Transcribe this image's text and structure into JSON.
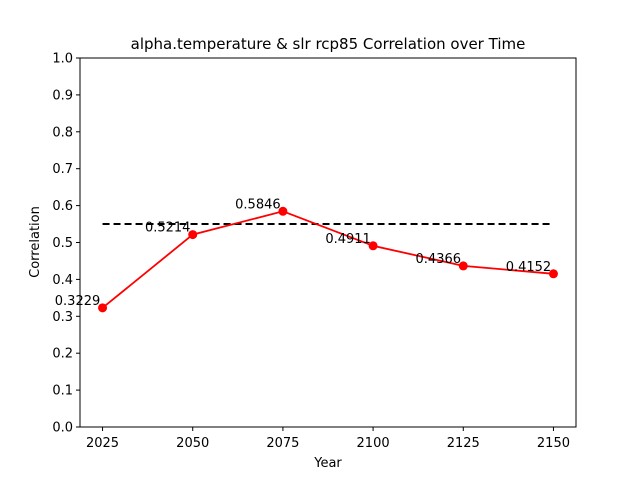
{
  "chart_data": {
    "type": "line",
    "title": "alpha.temperature & slr rcp85 Correlation over Time",
    "xlabel": "Year",
    "ylabel": "Correlation",
    "x": [
      2025,
      2050,
      2075,
      2100,
      2125,
      2150
    ],
    "series": [
      {
        "values": [
          0.3229,
          0.5214,
          0.5846,
          0.4911,
          0.4366,
          0.4152
        ],
        "data_labels": [
          "0.3229",
          "0.5214",
          "0.5846",
          "0.4911",
          "0.4366",
          "0.4152"
        ],
        "color": "#ff0000",
        "marker": "circle"
      }
    ],
    "reference_line": {
      "y": 0.55,
      "x_range": [
        2025,
        2150
      ],
      "style": "dashed",
      "color": "#000000"
    },
    "xticks": [
      "2025",
      "2050",
      "2075",
      "2100",
      "2125",
      "2150"
    ],
    "yticks": [
      "0.0",
      "0.1",
      "0.2",
      "0.3",
      "0.4",
      "0.5",
      "0.6",
      "0.7",
      "0.8",
      "0.9",
      "1.0"
    ],
    "xlim": [
      2018.75,
      2156.25
    ],
    "ylim": [
      0,
      1
    ],
    "grid": false,
    "legend": "none"
  }
}
